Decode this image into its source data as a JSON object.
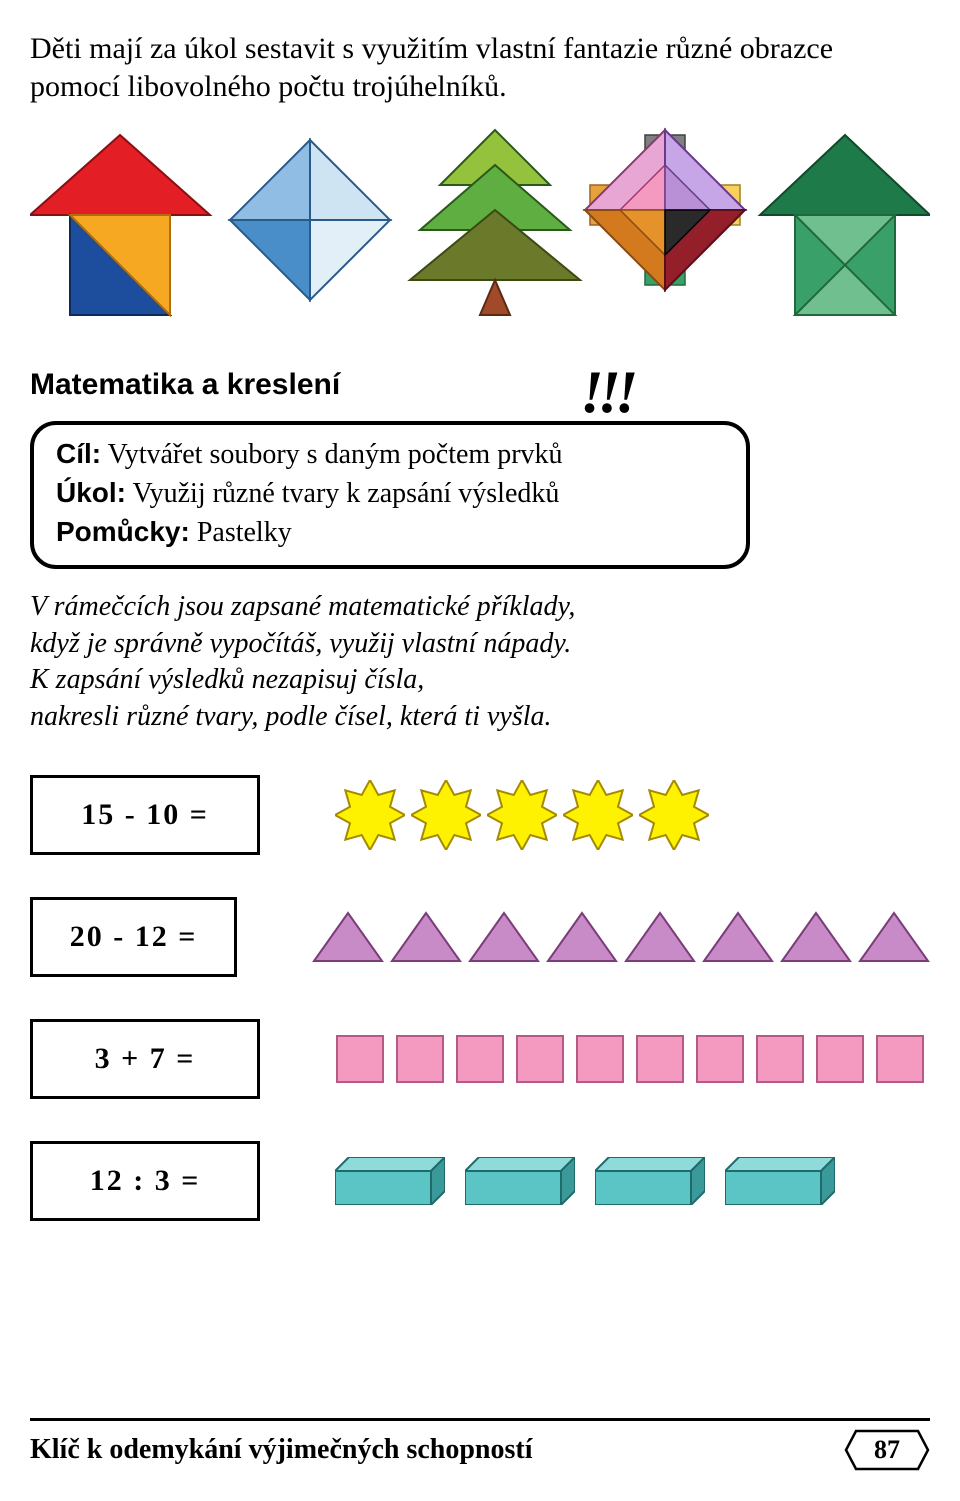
{
  "intro": "Děti mají za úkol sestavit s využitím vlastní fantazie různé obrazce pomocí libovolného počtu trojúhelníků.",
  "section_title": "Matematika a kreslení",
  "bang": "!!!",
  "goal": {
    "cil_label": "Cíl:",
    "cil_text": " Vytvářet soubory s daným počtem prvků",
    "ukol_label": "Úkol:",
    "ukol_text": " Využij různé tvary k zapsání výsledků",
    "pomucky_label": "Pomůcky:",
    "pomucky_text": " Pastelky"
  },
  "instructions_line1": "V rámečcích jsou zapsané matematické příklady,",
  "instructions_line2": "když je správně vypočítáš, využij vlastní nápady.",
  "instructions_line3": "K zapsání výsledků nezapisuj čísla,",
  "instructions_line4": "nakresli různé tvary, podle čísel, která ti vyšla.",
  "problems": [
    {
      "expression": "15 - 10 =",
      "answer": 5,
      "shape": "star",
      "colors": {
        "fill": "#fff200",
        "stroke": "#a48a00"
      }
    },
    {
      "expression": "20 - 12 =",
      "answer": 8,
      "shape": "triangle",
      "colors": {
        "fill": "#c88bc7",
        "stroke": "#7a3d79"
      }
    },
    {
      "expression": "3 + 7 =",
      "answer": 10,
      "shape": "square",
      "colors": {
        "fill": "#f49ac1",
        "stroke": "#b55a85"
      }
    },
    {
      "expression": "12 : 3 =",
      "answer": 4,
      "shape": "cuboid",
      "colors": {
        "fill": "#5bc4c4",
        "top": "#8fdada",
        "side": "#3a9a9a",
        "stroke": "#1f6a6a"
      }
    }
  ],
  "tangram_figures": {
    "house1": {
      "roof": "#e31e24",
      "wall_left": "#1d4e9e",
      "wall_right": "#f7a823",
      "trunk": "#ffe9a8"
    },
    "diamond": {
      "top_left": "#8fbde3",
      "top_right": "#cfe4f3",
      "bottom_left": "#4a8ec9",
      "bottom_right": "#e2eef8",
      "stroke": "#2a5a8a"
    },
    "tree": {
      "top": "#95c23d",
      "mid": "#5fae41",
      "bottom": "#6a7a2a",
      "trunk": "#a14a2a",
      "stroke": "#2a5a1a"
    },
    "cross_diamond": {
      "bg_squares": "#6a6a6a",
      "top": "#e7a6d4",
      "right": "#c7a6e7",
      "bottom": "#941e2a",
      "left": "#e6a23c",
      "inner_top": "#f49ac1",
      "inner_right": "#b98fd6",
      "inner_bottom": "#2a2a2a",
      "inner_left": "#d47a1e"
    },
    "house2": {
      "roof": "#1f7a4a",
      "wall": "#3aa06a",
      "door": "#6fbf8f"
    }
  },
  "footer_title": "Klíč k odemykání výjimečných schopností",
  "page_number": "87",
  "colors": {
    "text": "#000000",
    "border": "#000000",
    "background": "#ffffff"
  }
}
